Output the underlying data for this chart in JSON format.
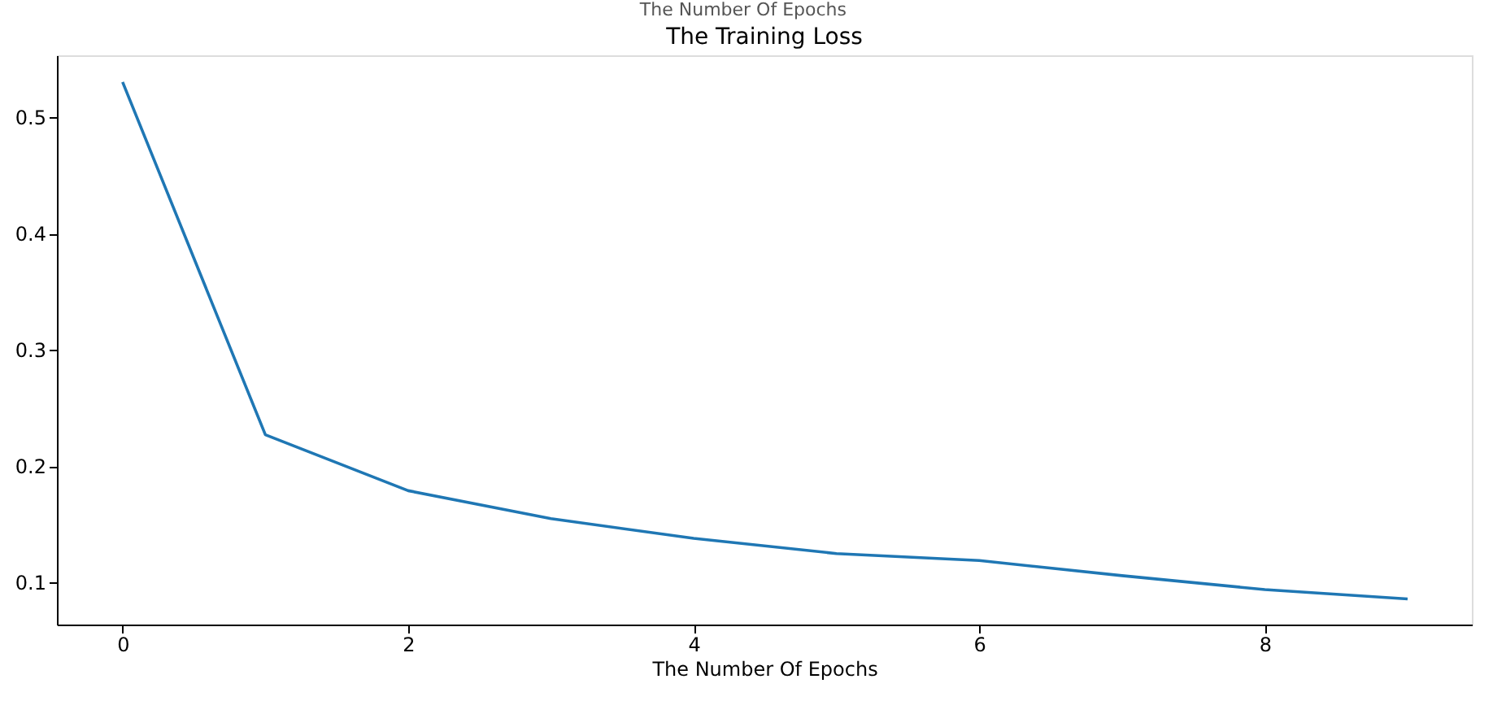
{
  "chart_data": {
    "type": "line",
    "title": "The Training Loss",
    "xlabel": "The Number Of Epochs",
    "annotations": [
      "The Number Of Epochs"
    ],
    "x": [
      0,
      1,
      2,
      3,
      4,
      5,
      6,
      7,
      8,
      9
    ],
    "series": [
      {
        "color": "#1f77b4",
        "values": [
          0.53,
          0.227,
          0.179,
          0.155,
          0.138,
          0.125,
          0.119,
          0.106,
          0.094,
          0.086
        ]
      }
    ],
    "xlim": [
      -0.46,
      9.45
    ],
    "xticks": [
      0,
      2,
      4,
      6,
      8
    ],
    "ylim": [
      0.064,
      0.553
    ],
    "yticks": [
      0.1,
      0.2,
      0.3,
      0.4,
      0.5
    ],
    "grid": false,
    "legend": false,
    "marker": "none",
    "line_style": "solid"
  }
}
